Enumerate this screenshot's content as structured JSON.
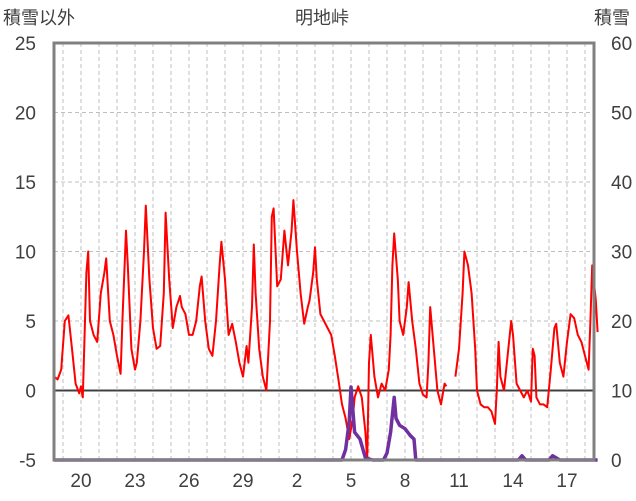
{
  "chart_data": {
    "type": "line",
    "title": "明地峠",
    "ylabel_left": "積雪以外",
    "ylabel_right": "積雪",
    "ylim_left": [
      -5,
      25
    ],
    "ylim_right": [
      0,
      60
    ],
    "yticks_left": [
      "25",
      "20",
      "15",
      "10",
      "5",
      "0",
      "-5"
    ],
    "yticks_right": [
      "60",
      "50",
      "40",
      "30",
      "20",
      "10",
      "0"
    ],
    "xticks": [
      "20",
      "23",
      "26",
      "29",
      "2",
      "5",
      "8",
      "11",
      "14",
      "17"
    ],
    "x_days": [
      0,
      3,
      6,
      9,
      12,
      15,
      18,
      21,
      24,
      27
    ],
    "x_range": [
      -1.5,
      28.5
    ],
    "grid": true,
    "colors": {
      "temperature": "#ff0000",
      "snow": "#7030a0",
      "axis": "#808080",
      "grid": "#bfbfbf",
      "zero_line": "#404040"
    },
    "series": [
      {
        "axis": "left",
        "color": "#ff0000",
        "points": [
          [
            -1.5,
            1
          ],
          [
            -1.3,
            0.8
          ],
          [
            -1.1,
            1.5
          ],
          [
            -0.9,
            5.0
          ],
          [
            -0.7,
            5.4
          ],
          [
            -0.5,
            3.0
          ],
          [
            -0.3,
            0.5
          ],
          [
            -0.1,
            -0.2
          ],
          [
            0.0,
            0.3
          ],
          [
            0.1,
            -0.5
          ],
          [
            0.3,
            8.5
          ],
          [
            0.4,
            10.0
          ],
          [
            0.5,
            5.0
          ],
          [
            0.7,
            4.0
          ],
          [
            0.9,
            3.5
          ],
          [
            1.1,
            7.0
          ],
          [
            1.3,
            8.5
          ],
          [
            1.4,
            9.5
          ],
          [
            1.6,
            5.0
          ],
          [
            1.8,
            4.0
          ],
          [
            2.0,
            2.5
          ],
          [
            2.2,
            1.2
          ],
          [
            2.3,
            5.0
          ],
          [
            2.5,
            11.5
          ],
          [
            2.6,
            9.0
          ],
          [
            2.8,
            3.0
          ],
          [
            3.0,
            1.5
          ],
          [
            3.1,
            2.0
          ],
          [
            3.3,
            5.0
          ],
          [
            3.5,
            10.0
          ],
          [
            3.6,
            13.3
          ],
          [
            3.8,
            8.0
          ],
          [
            4.0,
            4.5
          ],
          [
            4.2,
            3.0
          ],
          [
            4.4,
            3.2
          ],
          [
            4.6,
            7.0
          ],
          [
            4.7,
            12.8
          ],
          [
            4.9,
            8.0
          ],
          [
            5.1,
            4.5
          ],
          [
            5.3,
            6.0
          ],
          [
            5.5,
            6.8
          ],
          [
            5.6,
            6.0
          ],
          [
            5.8,
            5.5
          ],
          [
            6.0,
            4.0
          ],
          [
            6.2,
            4.0
          ],
          [
            6.4,
            5.0
          ],
          [
            6.6,
            7.5
          ],
          [
            6.7,
            8.2
          ],
          [
            6.9,
            5.0
          ],
          [
            7.1,
            3.0
          ],
          [
            7.3,
            2.5
          ],
          [
            7.5,
            5.0
          ],
          [
            7.7,
            9.0
          ],
          [
            7.8,
            10.7
          ],
          [
            8.0,
            8.0
          ],
          [
            8.2,
            4.0
          ],
          [
            8.4,
            4.8
          ],
          [
            8.6,
            3.5
          ],
          [
            8.8,
            2.0
          ],
          [
            9.0,
            1.0
          ],
          [
            9.2,
            3.2
          ],
          [
            9.3,
            2.0
          ],
          [
            9.5,
            6.0
          ],
          [
            9.6,
            10.5
          ],
          [
            9.7,
            7.0
          ],
          [
            9.9,
            3.0
          ],
          [
            10.1,
            1.0
          ],
          [
            10.3,
            0.0
          ],
          [
            10.5,
            5.0
          ],
          [
            10.6,
            12.5
          ],
          [
            10.7,
            13.1
          ],
          [
            10.9,
            7.5
          ],
          [
            11.1,
            8.0
          ],
          [
            11.3,
            11.5
          ],
          [
            11.5,
            9.0
          ],
          [
            11.7,
            11.5
          ],
          [
            11.8,
            13.7
          ],
          [
            12.0,
            10.0
          ],
          [
            12.2,
            7.0
          ],
          [
            12.4,
            4.8
          ],
          [
            12.6,
            6.0
          ],
          [
            12.7,
            6.5
          ],
          [
            12.9,
            8.5
          ],
          [
            13.0,
            10.3
          ],
          [
            13.1,
            8.0
          ],
          [
            13.3,
            5.5
          ],
          [
            13.5,
            5.0
          ],
          [
            13.7,
            4.5
          ],
          [
            13.9,
            4.0
          ],
          [
            14.1,
            2.5
          ],
          [
            14.3,
            0.8
          ],
          [
            14.5,
            -1.0
          ],
          [
            14.7,
            -2.0
          ],
          [
            14.9,
            -3.5
          ],
          [
            15.1,
            -2.0
          ],
          [
            15.2,
            -0.5
          ],
          [
            15.4,
            0.3
          ],
          [
            15.6,
            -0.5
          ],
          [
            15.8,
            -3.0
          ],
          [
            15.9,
            -5.0
          ],
          [
            16.0,
            2.0
          ],
          [
            16.1,
            4.0
          ],
          [
            16.3,
            1.0
          ],
          [
            16.5,
            -0.5
          ],
          [
            16.7,
            0.5
          ],
          [
            16.9,
            0.0
          ],
          [
            17.1,
            1.5
          ],
          [
            17.2,
            4.0
          ],
          [
            17.3,
            9.0
          ],
          [
            17.4,
            11.3
          ],
          [
            17.6,
            8.0
          ],
          [
            17.7,
            5.0
          ],
          [
            17.9,
            4.0
          ],
          [
            18.1,
            6.0
          ],
          [
            18.2,
            7.8
          ],
          [
            18.4,
            5.0
          ],
          [
            18.6,
            3.0
          ],
          [
            18.8,
            0.5
          ],
          [
            19.0,
            -0.3
          ],
          [
            19.2,
            -0.5
          ],
          [
            19.3,
            2.0
          ],
          [
            19.4,
            6.0
          ],
          [
            19.6,
            3.0
          ],
          [
            19.8,
            0.0
          ],
          [
            20.0,
            -1.0
          ],
          [
            20.2,
            0.5
          ],
          [
            20.3,
            0.3
          ],
          [
            20.6,
            null
          ],
          [
            20.8,
            1.0
          ],
          [
            21.0,
            3.0
          ],
          [
            21.2,
            7.0
          ],
          [
            21.3,
            10.0
          ],
          [
            21.5,
            9.0
          ],
          [
            21.7,
            7.0
          ],
          [
            21.9,
            3.0
          ],
          [
            22.0,
            0.0
          ],
          [
            22.2,
            -1.0
          ],
          [
            22.4,
            -1.2
          ],
          [
            22.6,
            -1.2
          ],
          [
            22.8,
            -1.5
          ],
          [
            23.0,
            -2.4
          ],
          [
            23.1,
            0.0
          ],
          [
            23.2,
            3.5
          ],
          [
            23.3,
            1.0
          ],
          [
            23.5,
            0.0
          ],
          [
            23.7,
            2.5
          ],
          [
            23.9,
            5.0
          ],
          [
            24.0,
            4.0
          ],
          [
            24.2,
            0.5
          ],
          [
            24.4,
            0.0
          ],
          [
            24.6,
            -0.5
          ],
          [
            24.8,
            0.0
          ],
          [
            25.0,
            -0.8
          ],
          [
            25.1,
            3.0
          ],
          [
            25.2,
            2.5
          ],
          [
            25.3,
            -0.5
          ],
          [
            25.5,
            -1.0
          ],
          [
            25.7,
            -1.0
          ],
          [
            25.9,
            -1.2
          ],
          [
            26.1,
            1.5
          ],
          [
            26.3,
            4.5
          ],
          [
            26.4,
            4.8
          ],
          [
            26.6,
            2.0
          ],
          [
            26.8,
            1.0
          ],
          [
            27.0,
            3.5
          ],
          [
            27.2,
            5.5
          ],
          [
            27.4,
            5.2
          ],
          [
            27.6,
            4.0
          ],
          [
            27.8,
            3.5
          ],
          [
            28.0,
            2.5
          ],
          [
            28.2,
            1.5
          ],
          [
            28.3,
            5.0
          ],
          [
            28.4,
            9.0
          ],
          [
            28.6,
            6.5
          ],
          [
            28.7,
            4.2
          ]
        ]
      },
      {
        "axis": "right",
        "color": "#7030a0",
        "points": [
          [
            -1.5,
            0
          ],
          [
            14.5,
            0
          ],
          [
            14.7,
            1.5
          ],
          [
            14.9,
            5.5
          ],
          [
            15.0,
            10.5
          ],
          [
            15.2,
            4.0
          ],
          [
            15.5,
            3.0
          ],
          [
            15.8,
            0.3
          ],
          [
            16.2,
            0
          ],
          [
            16.8,
            0
          ],
          [
            17.0,
            1.0
          ],
          [
            17.2,
            4.0
          ],
          [
            17.4,
            9.0
          ],
          [
            17.5,
            6.0
          ],
          [
            17.7,
            5.0
          ],
          [
            18.0,
            4.5
          ],
          [
            18.3,
            3.5
          ],
          [
            18.5,
            3.0
          ],
          [
            18.6,
            0
          ],
          [
            24.3,
            0
          ],
          [
            24.5,
            0.6
          ],
          [
            24.7,
            0
          ],
          [
            26.0,
            0
          ],
          [
            26.2,
            0.6
          ],
          [
            26.4,
            0.3
          ],
          [
            26.6,
            0
          ],
          [
            28.7,
            0
          ]
        ]
      }
    ]
  }
}
